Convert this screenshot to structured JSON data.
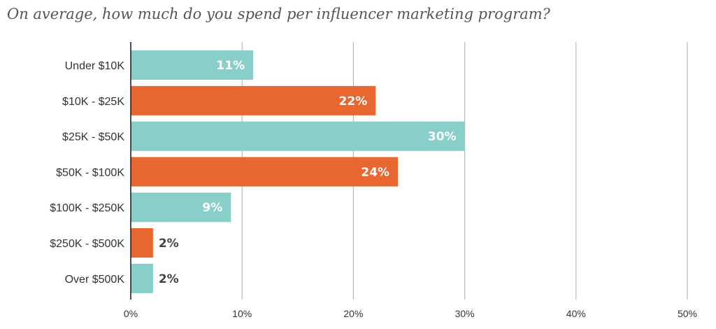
{
  "chart_data": {
    "type": "bar",
    "orientation": "horizontal",
    "title": "On average, how much do you spend per influencer marketing program?",
    "categories": [
      "Under $10K",
      "$10K - $25K",
      "$25K - $50K",
      "$50K - $100K",
      "$100K - $250K",
      "$250K - $500K",
      "Over $500K"
    ],
    "values": [
      11,
      22,
      30,
      24,
      9,
      2,
      2
    ],
    "value_labels": [
      "11%",
      "22%",
      "30%",
      "24%",
      "9%",
      "2%",
      "2%"
    ],
    "x_ticks": [
      "0%",
      "10%",
      "20%",
      "30%",
      "40%",
      "50%"
    ],
    "xlim": [
      0,
      50
    ],
    "grid": true,
    "colors": [
      "#87cfc8",
      "#e8662f"
    ]
  }
}
